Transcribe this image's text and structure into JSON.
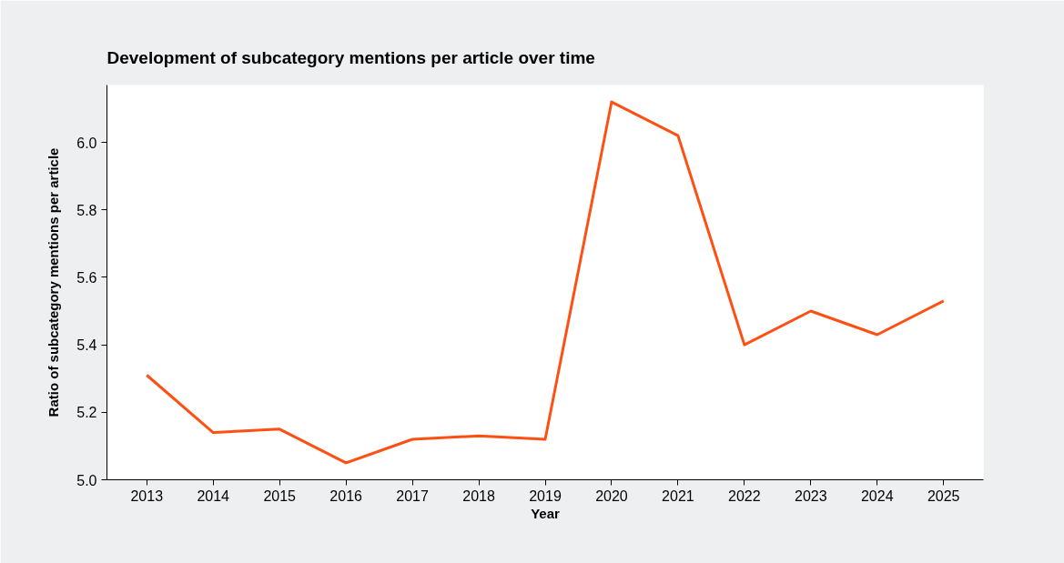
{
  "chart_data": {
    "type": "line",
    "title": "Development of subcategory mentions per article over time",
    "xlabel": "Year",
    "ylabel": "Ratio of subcategory mentions per article",
    "categories": [
      "2013",
      "2014",
      "2015",
      "2016",
      "2017",
      "2018",
      "2019",
      "2020",
      "2021",
      "2022",
      "2023",
      "2024",
      "2025"
    ],
    "series": [
      {
        "color": "#ff5014",
        "values": [
          5.31,
          5.14,
          5.15,
          5.05,
          5.12,
          5.13,
          5.12,
          6.12,
          6.02,
          5.4,
          5.5,
          5.43,
          5.53
        ]
      }
    ],
    "ylim": [
      5.0,
      6.17
    ],
    "yticks": [
      {
        "value": 5.0,
        "label": "5.0"
      },
      {
        "value": 5.2,
        "label": "5.2"
      },
      {
        "value": 5.4,
        "label": "5.4"
      },
      {
        "value": 5.6,
        "label": "5.6"
      },
      {
        "value": 5.8,
        "label": "5.8"
      },
      {
        "value": 6.0,
        "label": "6.0"
      }
    ],
    "grid": false,
    "marker": "none",
    "line_style": "solid"
  }
}
